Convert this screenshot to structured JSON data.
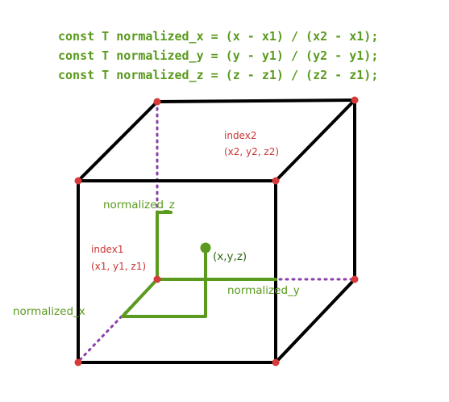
{
  "code_lines": [
    "const T normalized_x = (x - x1) / (x2 - x1);",
    "const T normalized_y = (y - y1) / (y2 - y1);",
    "const T normalized_z = (z - z1) / (z2 - z1);"
  ],
  "labels": {
    "index2_name": "index2",
    "index2_coords": "(x2, y2, z2)",
    "index1_name": "index1",
    "index1_coords": "(x1, y1, z1)",
    "normalized_z": "normalized_z",
    "normalized_y": "normalized_y",
    "normalized_x": "normalized_x",
    "point": "(x,y,z)"
  },
  "colors": {
    "edge": "#000000",
    "hidden_edge": "#8a3fa8",
    "vertex": "#d63a3a",
    "green": "#5a9a1e",
    "red_text": "#cc3333"
  }
}
